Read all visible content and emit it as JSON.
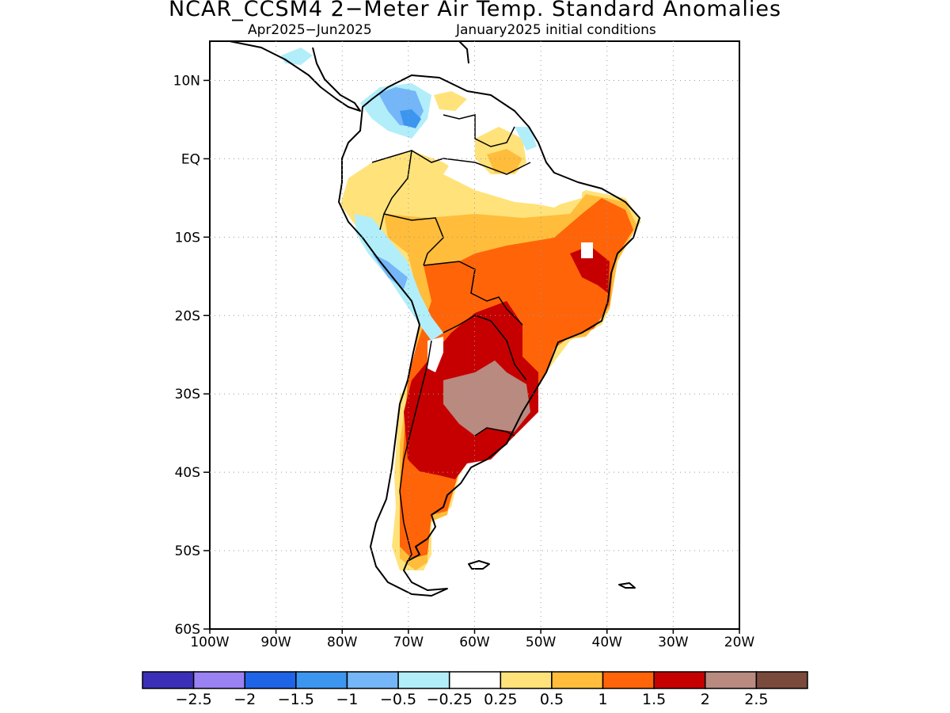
{
  "title": "NCAR_CCSM4 2−Meter Air Temp. Standard Anomalies",
  "subtitle_left": "Apr2025−Jun2025",
  "subtitle_right": "January2025 initial conditions",
  "map": {
    "region": "South America",
    "lon_range": [
      -100,
      -20
    ],
    "lat_range": [
      -60,
      15
    ],
    "lat_ticks": [
      {
        "value": 10,
        "label": "10N"
      },
      {
        "value": 0,
        "label": "EQ"
      },
      {
        "value": -10,
        "label": "10S"
      },
      {
        "value": -20,
        "label": "20S"
      },
      {
        "value": -30,
        "label": "30S"
      },
      {
        "value": -40,
        "label": "40S"
      },
      {
        "value": -50,
        "label": "50S"
      },
      {
        "value": -60,
        "label": "60S"
      }
    ],
    "lon_ticks": [
      {
        "value": -100,
        "label": "100W"
      },
      {
        "value": -90,
        "label": "90W"
      },
      {
        "value": -80,
        "label": "80W"
      },
      {
        "value": -70,
        "label": "70W"
      },
      {
        "value": -60,
        "label": "60W"
      },
      {
        "value": -50,
        "label": "50W"
      },
      {
        "value": -40,
        "label": "40W"
      },
      {
        "value": -30,
        "label": "30W"
      },
      {
        "value": -20,
        "label": "20W"
      }
    ],
    "grid": "dotted"
  },
  "colorbar": {
    "colors": [
      "#3b2fb8",
      "#9b82f2",
      "#1f64e6",
      "#3c96f0",
      "#74b6f7",
      "#b1eefa",
      "#ffffff",
      "#ffe27a",
      "#ffbd3b",
      "#ff6409",
      "#c60000",
      "#b88a80",
      "#7a4a3c"
    ],
    "labels": [
      "−2.5",
      "−2",
      "−1.5",
      "−1",
      "−0.5",
      "−0.25",
      "0.25",
      "0.5",
      "1",
      "1.5",
      "2",
      "2.5"
    ]
  }
}
